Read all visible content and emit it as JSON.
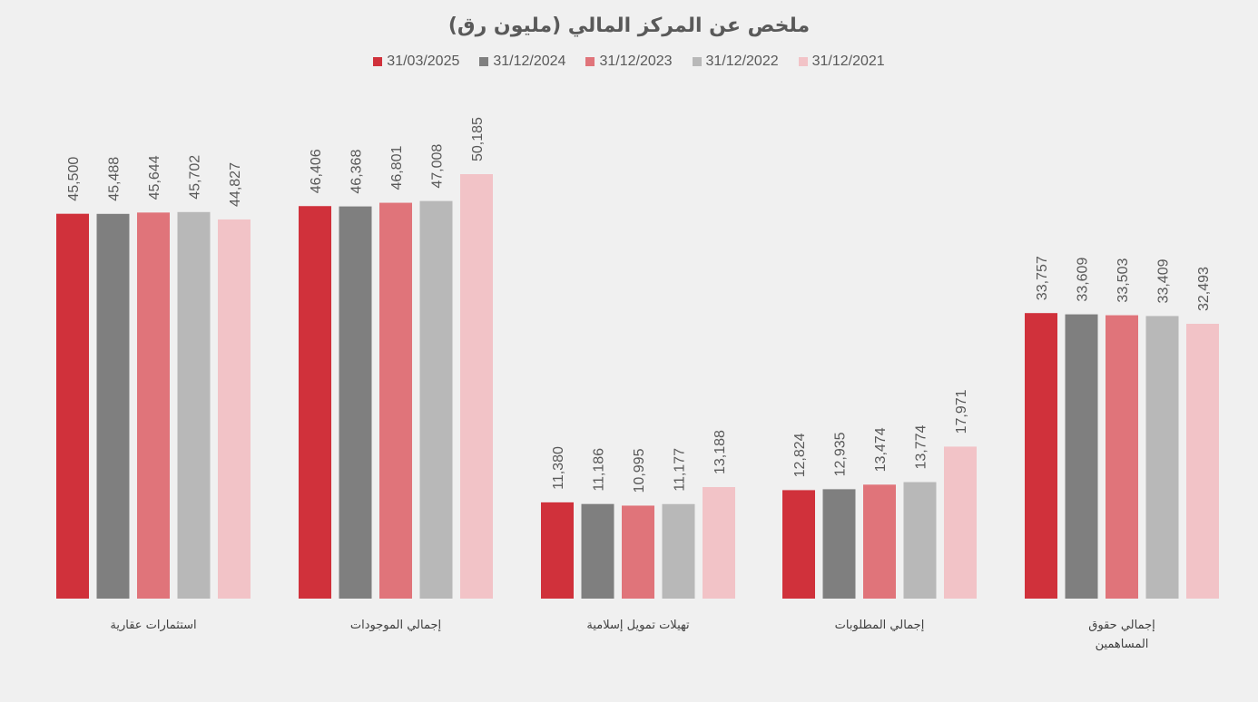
{
  "chart_data": {
    "type": "bar",
    "title": "ملخص عن المركز المالي (مليون رق)",
    "legend_position": "top",
    "grid": false,
    "ylim": [
      0,
      50185
    ],
    "categories": [
      [
        "استثمارات عقارية"
      ],
      [
        "إجمالي الموجودات"
      ],
      [
        "تهيلات تمويل إسلامية"
      ],
      [
        "إجمالي المطلوبات"
      ],
      [
        "إجمالي حقوق",
        "المساهمين"
      ]
    ],
    "series": [
      {
        "name": "31/03/2025",
        "color": "#d0313b",
        "values": [
          45500,
          46406,
          11380,
          12824,
          33757
        ],
        "labels": [
          "45,500",
          "46,406",
          "11,380",
          "12,824",
          "33,757"
        ]
      },
      {
        "name": "31/12/2024",
        "color": "#7f7f7f",
        "values": [
          45488,
          46368,
          11186,
          12935,
          33609
        ],
        "labels": [
          "45,488",
          "46,368",
          "11,186",
          "12,935",
          "33,609"
        ]
      },
      {
        "name": "31/12/2023",
        "color": "#e0747a",
        "values": [
          45644,
          46801,
          10995,
          13474,
          33503
        ],
        "labels": [
          "45,644",
          "46,801",
          "10,995",
          "13,474",
          "33,503"
        ]
      },
      {
        "name": "31/12/2022",
        "color": "#b8b8b8",
        "values": [
          45702,
          47008,
          11177,
          13774,
          33409
        ],
        "labels": [
          "45,702",
          "47,008",
          "11,177",
          "13,774",
          "33,409"
        ]
      },
      {
        "name": "31/12/2021",
        "color": "#f2c3c7",
        "values": [
          44827,
          50185,
          13188,
          17971,
          32493
        ],
        "labels": [
          "44,827",
          "50,185",
          "13,188",
          "17,971",
          "32,493"
        ]
      }
    ]
  }
}
